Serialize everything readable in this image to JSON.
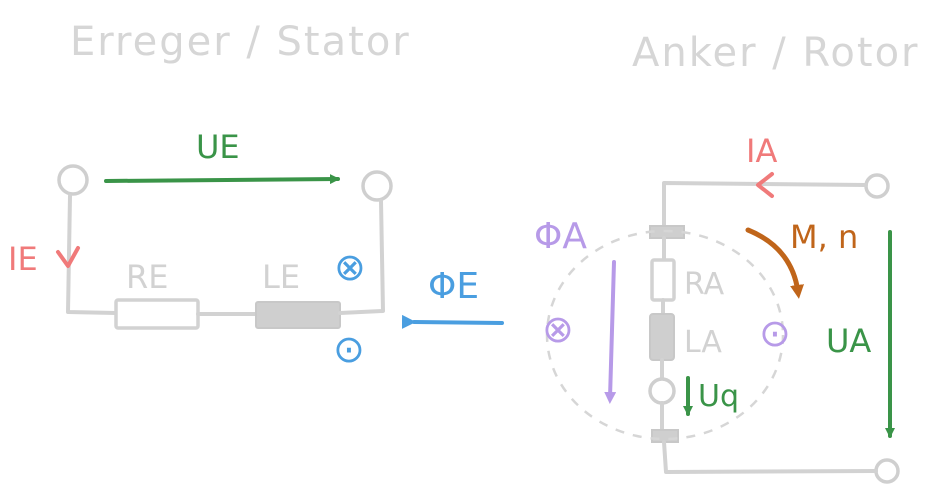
{
  "headings": {
    "stator": "Erreger / Stator",
    "rotor": "Anker / Rotor"
  },
  "labels": {
    "u_excitation": "UE",
    "i_excitation": "IE",
    "r_excitation": "RE",
    "l_excitation": "LE",
    "phi_excitation": "ΦE",
    "i_armature": "IA",
    "phi_armature": "ΦA",
    "r_armature": "RA",
    "l_armature": "LA",
    "u_induced": "Uq",
    "torque_speed": "M, n",
    "u_armature": "UA"
  },
  "symbols": {
    "cross": "⊗",
    "dot": "⊙"
  },
  "colors": {
    "voltage": "#3a9448",
    "current": "#f07a7a",
    "flux_excitation": "#4a9ee0",
    "flux_armature": "#b79ae8",
    "torque": "#c0651a",
    "circuit": "#d2d2d2",
    "heading": "#d6d6d6"
  }
}
